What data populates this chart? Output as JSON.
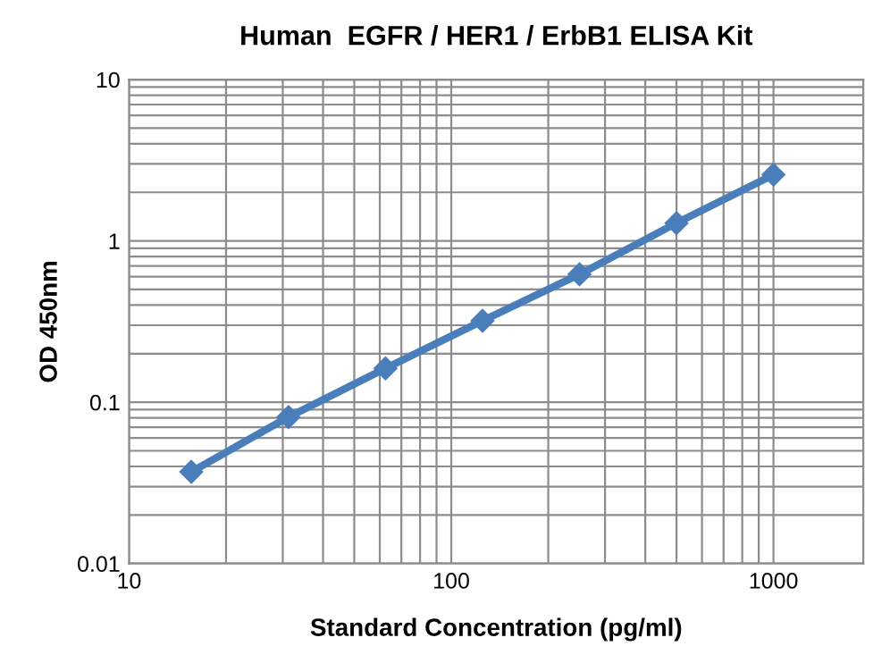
{
  "chart_data": {
    "type": "line",
    "title": "Human  EGFR / HER1 / ErbB1 ELISA Kit",
    "xlabel": "Standard Concentration (pg/ml)",
    "ylabel": "OD 450nm",
    "x": [
      15.6,
      31.25,
      62.5,
      125,
      250,
      500,
      1000
    ],
    "series": [
      {
        "color": "#4a7ebb",
        "values": [
          0.037,
          0.081,
          0.162,
          0.32,
          0.62,
          1.29,
          2.57
        ]
      }
    ],
    "log": "xy",
    "xlim": [
      10,
      1900
    ],
    "ylim": [
      0.01,
      10
    ],
    "xticks": [
      10,
      100,
      1000
    ],
    "yticks": [
      {
        "value": 0.01,
        "label": "0.01"
      },
      {
        "value": 0.1,
        "label": "0.1"
      },
      {
        "value": 1,
        "label": "1"
      },
      {
        "value": 10,
        "label": "10"
      }
    ],
    "grid": true,
    "marker": "diamond",
    "line_style": "solid"
  }
}
